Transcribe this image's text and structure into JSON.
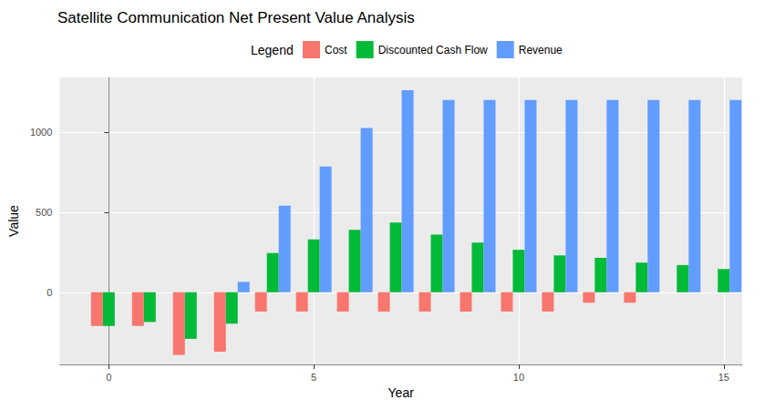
{
  "chart_data": {
    "type": "bar",
    "title": "Satellite Communication Net Present Value Analysis",
    "legend_title": "Legend",
    "x_label": "Year",
    "y_label": "Value",
    "x": [
      0,
      1,
      2,
      3,
      4,
      5,
      6,
      7,
      8,
      9,
      10,
      11,
      12,
      13,
      14,
      15
    ],
    "series": [
      {
        "name": "Cost",
        "color": "#F8766D",
        "values": [
          -210,
          -210,
          -390,
          -370,
          -120,
          -120,
          -120,
          -120,
          -120,
          -120,
          -120,
          -120,
          -65,
          -65,
          0,
          0
        ]
      },
      {
        "name": "Discounted Cash Flow",
        "color": "#00BA38",
        "values": [
          -210,
          -185,
          -290,
          -195,
          245,
          330,
          390,
          435,
          360,
          310,
          265,
          230,
          215,
          185,
          170,
          145
        ]
      },
      {
        "name": "Revenue",
        "color": "#619CFF",
        "values": [
          0,
          0,
          0,
          65,
          540,
          785,
          1025,
          1260,
          1200,
          1200,
          1200,
          1200,
          1200,
          1200,
          1200,
          1200
        ]
      }
    ],
    "xlim": [
      -1.2,
      15.45
    ],
    "xticks": [
      0,
      5,
      10,
      15
    ],
    "ylim": [
      -450,
      1340
    ],
    "yticks": [
      0,
      500,
      1000
    ],
    "grid": true,
    "legend": "top"
  }
}
